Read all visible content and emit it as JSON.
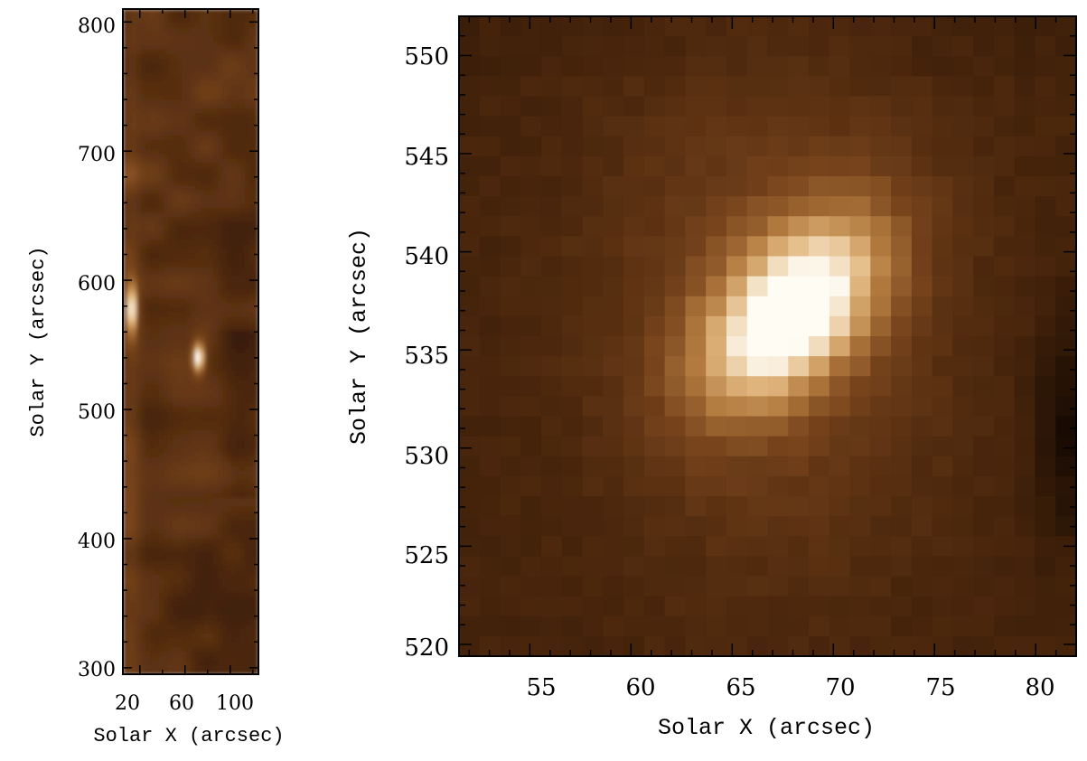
{
  "colors": {
    "background": "#ffffff",
    "colormap_low": "#1a0d03",
    "colormap_mid": "#8a5424",
    "colormap_high": "#fffaf0"
  },
  "chart_data": [
    {
      "type": "heatmap",
      "xlabel": "Solar X (arcsec)",
      "ylabel": "Solar Y (arcsec)",
      "xlim": [
        5,
        125
      ],
      "ylim": [
        295,
        810
      ],
      "x_ticks": [
        20,
        60,
        100
      ],
      "x_tick_labels": [
        "20",
        "60",
        "100"
      ],
      "y_ticks": [
        300,
        400,
        500,
        600,
        700,
        800
      ],
      "y_tick_labels": [
        "300",
        "400",
        "500",
        "600",
        "700",
        "800"
      ],
      "grid": false,
      "colormap": "copper",
      "features": [
        {
          "x": 72,
          "y": 540,
          "intensity": 1.0
        },
        {
          "x": 13,
          "y": 578,
          "intensity": 0.85
        }
      ]
    },
    {
      "type": "heatmap",
      "xlabel": "Solar X (arcsec)",
      "ylabel": "Solar Y (arcsec)",
      "xlim": [
        51.5,
        82
      ],
      "ylim": [
        519.4,
        552
      ],
      "x_ticks": [
        55,
        60,
        65,
        70,
        75,
        80
      ],
      "x_tick_labels": [
        "55",
        "60",
        "65",
        "70",
        "75",
        "80"
      ],
      "y_ticks": [
        520,
        525,
        530,
        535,
        540,
        545,
        550
      ],
      "y_tick_labels": [
        "520",
        "525",
        "530",
        "535",
        "540",
        "545",
        "550"
      ],
      "grid": false,
      "colormap": "copper",
      "peak": {
        "x": 68,
        "y": 537
      }
    }
  ]
}
